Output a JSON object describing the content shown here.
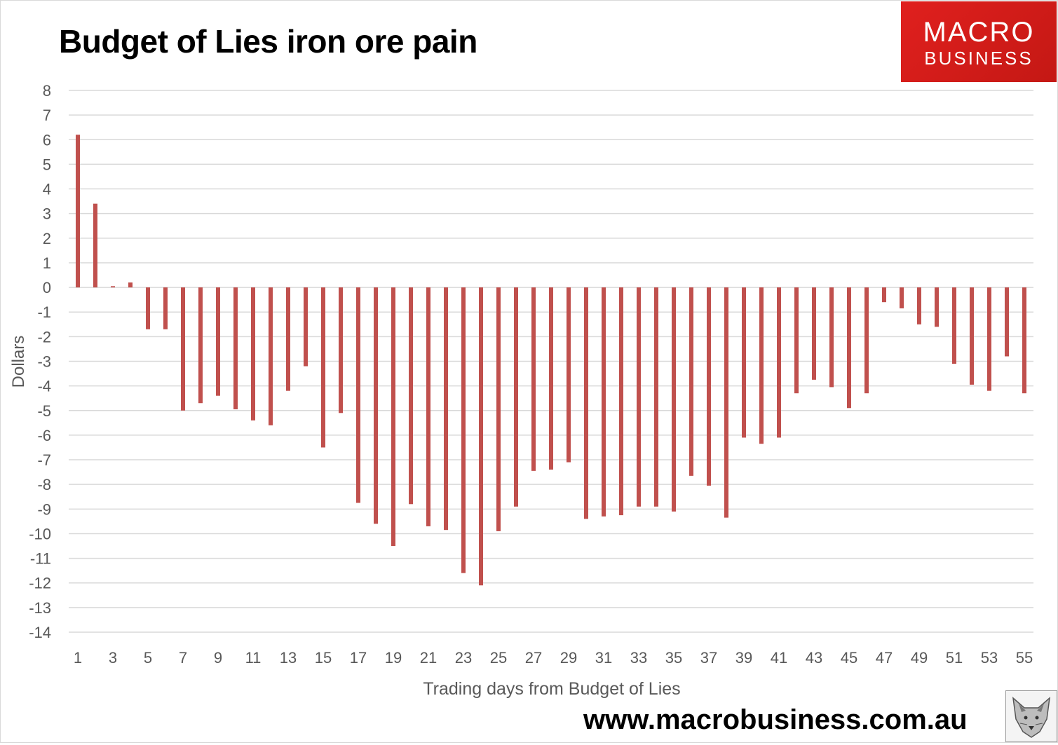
{
  "header": {
    "title": "Budget of Lies iron ore pain"
  },
  "logo": {
    "line1": "MACRO",
    "line2": "BUSINESS",
    "color": "#d91c1a"
  },
  "footer": {
    "url": "www.macrobusiness.com.au"
  },
  "chart_data": {
    "type": "bar",
    "title": "Budget of Lies iron ore pain",
    "xlabel": "Trading days from Budget of Lies",
    "ylabel": "Dollars",
    "ylim": [
      -14,
      8
    ],
    "yticks": [
      8,
      7,
      6,
      5,
      4,
      3,
      2,
      1,
      0,
      -1,
      -2,
      -3,
      -4,
      -5,
      -6,
      -7,
      -8,
      -9,
      -10,
      -11,
      -12,
      -13,
      -14
    ],
    "x_tick_labels": [
      1,
      3,
      5,
      7,
      9,
      11,
      13,
      15,
      17,
      19,
      21,
      23,
      25,
      27,
      29,
      31,
      33,
      35,
      37,
      39,
      41,
      43,
      45,
      47,
      49,
      51,
      53,
      55
    ],
    "grid": true,
    "bar_color": "#c0504d",
    "categories": [
      1,
      2,
      3,
      4,
      5,
      6,
      7,
      8,
      9,
      10,
      11,
      12,
      13,
      14,
      15,
      16,
      17,
      18,
      19,
      20,
      21,
      22,
      23,
      24,
      25,
      26,
      27,
      28,
      29,
      30,
      31,
      32,
      33,
      34,
      35,
      36,
      37,
      38,
      39,
      40,
      41,
      42,
      43,
      44,
      45,
      46,
      47,
      48,
      49,
      50,
      51,
      52,
      53,
      54,
      55
    ],
    "values": [
      6.2,
      3.4,
      0.05,
      0.2,
      -1.7,
      -1.7,
      -5.0,
      -4.7,
      -4.4,
      -4.95,
      -5.4,
      -5.6,
      -4.2,
      -3.2,
      -6.5,
      -5.1,
      -8.75,
      -9.6,
      -10.5,
      -8.8,
      -9.7,
      -9.85,
      -11.6,
      -12.1,
      -9.9,
      -8.9,
      -7.45,
      -7.4,
      -7.1,
      -9.4,
      -9.3,
      -9.25,
      -8.9,
      -8.9,
      -9.1,
      -7.65,
      -8.05,
      -9.35,
      -6.1,
      -6.35,
      -6.1,
      -4.3,
      -3.75,
      -4.05,
      -4.9,
      -4.3,
      -0.6,
      -0.85,
      -1.5,
      -1.6,
      -3.1,
      -3.95,
      -4.2,
      -2.8,
      -4.3
    ]
  }
}
